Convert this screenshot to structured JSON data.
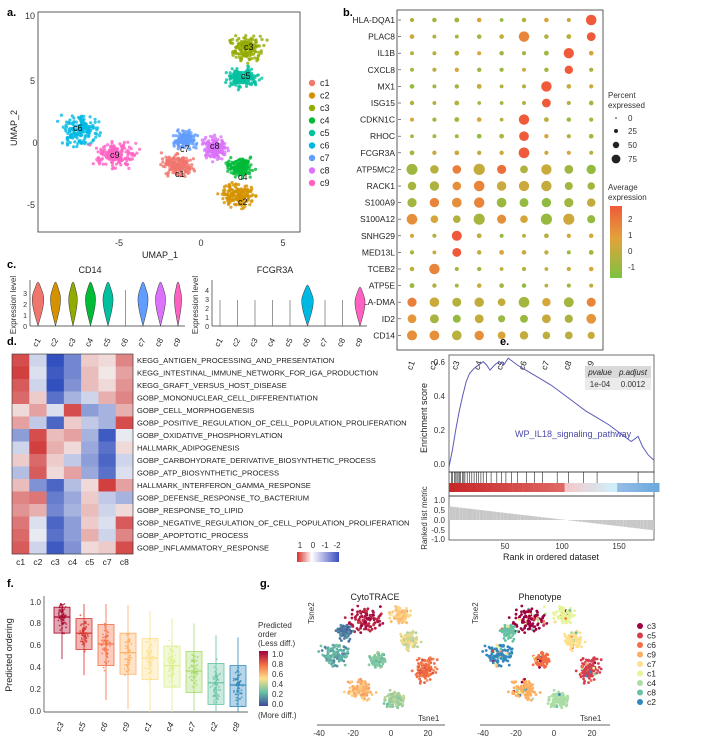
{
  "panel_labels": {
    "a": "a.",
    "b": "b.",
    "c": "c.",
    "d": "d.",
    "e": "e.",
    "f": "f.",
    "g": "g."
  },
  "panel_a": {
    "xlabel": "UMAP_1",
    "ylabel": "UMAP_2",
    "xticks": [
      "-5",
      "0",
      "5"
    ],
    "yticks": [
      "10",
      "5",
      "0",
      "-5"
    ],
    "clusters": [
      {
        "name": "c1",
        "color": "#f0766d"
      },
      {
        "name": "c2",
        "color": "#d49200"
      },
      {
        "name": "c3",
        "color": "#93aa00"
      },
      {
        "name": "c4",
        "color": "#00ba38"
      },
      {
        "name": "c5",
        "color": "#00c19f"
      },
      {
        "name": "c6",
        "color": "#00b9e3"
      },
      {
        "name": "c7",
        "color": "#619cff"
      },
      {
        "name": "c8",
        "color": "#db72fb"
      },
      {
        "name": "c9",
        "color": "#ff61c3"
      }
    ]
  },
  "panel_b": {
    "genes": [
      "HLA-DQA1",
      "PLAC8",
      "IL1B",
      "CXCL8",
      "MX1",
      "ISG15",
      "CDKN1C",
      "RHOC",
      "FCGR3A",
      "ATP5MC2",
      "RACK1",
      "S100A9",
      "S100A12",
      "SNHG29",
      "MED13L",
      "TCEB2",
      "ATP5E",
      "HLA-DMA",
      "ID2",
      "CD14"
    ],
    "clusters": [
      "c1",
      "c2",
      "c3",
      "c4",
      "c5",
      "c6",
      "c7",
      "c8",
      "c9"
    ],
    "legend_pct_title_1": "Percent",
    "legend_pct_title_2": "expressed",
    "pct_labels": [
      "0",
      "25",
      "50",
      "75"
    ],
    "legend_avg_title_1": "Average",
    "legend_avg_title_2": "expression",
    "avg_labels": [
      "2",
      "1",
      "0",
      "-1"
    ]
  },
  "panel_c": {
    "left_title": "CD14",
    "right_title": "FCGR3A",
    "ylabel": "Expression level",
    "left_yticks": [
      "0",
      "1",
      "2",
      "3"
    ],
    "right_yticks": [
      "0",
      "1",
      "2",
      "3",
      "4"
    ],
    "clusters": [
      "c1",
      "c2",
      "c3",
      "c4",
      "c5",
      "c6",
      "c7",
      "c8",
      "c9"
    ]
  },
  "panel_d": {
    "pathways": [
      "KEGG_ANTIGEN_PROCESSING_AND_PRESENTATION",
      "KEGG_INTESTINAL_IMMUNE_NETWORK_FOR_IGA_PRODUCTION",
      "KEGG_GRAFT_VERSUS_HOST_DISEASE",
      "GOBP_MONONUCLEAR_CELL_DIFFERENTIATION",
      "GOBP_CELL_MORPHOGENESIS",
      "GOBP_POSITIVE_REGULATION_OF_CELL_POPULATION_PROLIFERATION",
      "GOBP_OXIDATIVE_PHOSPHORYLATION",
      "HALLMARK_ADIPOGENESIS",
      "GOBP_CARBOHYDRATE_DERIVATIVE_BIOSYNTHETIC_PROCESS",
      "GOBP_ATP_BIOSYNTHETIC_PROCESS",
      "HALLMARK_INTERFERON_GAMMA_RESPONSE",
      "GOBP_DEFENSE_RESPONSE_TO_BACTERIUM",
      "GOBP_RESPONSE_TO_LIPID",
      "GOBP_NEGATIVE_REGULATION_OF_CELL_POPULATION_PROLIFERATION",
      "GOBP_APOPTOTIC_PROCESS",
      "GOBP_INFLAMMATORY_RESPONSE"
    ],
    "columns": [
      "c1",
      "c2",
      "c3",
      "c4",
      "c5",
      "c7",
      "c8"
    ],
    "colorbar_labels": [
      "1",
      "0",
      "-1",
      "-2"
    ]
  },
  "panel_e": {
    "ylabel": "Enrichment score",
    "ylabel2": "Ranked list metric",
    "xlabel": "Rank in ordered dataset",
    "yticks": [
      "0.6",
      "0.4",
      "0.2",
      "0.0"
    ],
    "yticks2": [
      "1.0",
      "0.5",
      "0.0",
      "-0.5",
      "-1.0"
    ],
    "xticks": [
      "50",
      "100",
      "150"
    ],
    "pathway": "WP_IL18_signaling_pathway",
    "table_headers": [
      "pvalue",
      "p.adjust"
    ],
    "table_values": [
      "1e-04",
      "0.0012"
    ]
  },
  "panel_f": {
    "ylabel": "Predicted ordering",
    "yticks": [
      "1.0",
      "0.8",
      "0.6",
      "0.4",
      "0.2",
      "0.0"
    ],
    "order": [
      "c3",
      "c5",
      "c6",
      "c9",
      "c1",
      "c4",
      "c7",
      "c2",
      "c8"
    ],
    "colors": [
      "#a50026",
      "#d73027",
      "#f46d43",
      "#fdae61",
      "#fee08b",
      "#d9ef8b",
      "#a6d96a",
      "#66c2a5",
      "#3288bd"
    ],
    "medians": [
      0.88,
      0.73,
      0.63,
      0.55,
      0.5,
      0.43,
      0.38,
      0.27,
      0.25
    ]
  },
  "panel_g": {
    "left_title": "CytoTRACE",
    "right_title": "Phenotype",
    "xlabel": "Tsne1",
    "ylabel": "Tsne2",
    "xticks": [
      "-40",
      "-20",
      "0",
      "20"
    ],
    "legend_title_1": "Predicted",
    "legend_title_2": "order",
    "legend_title_3": "(Less diff.)",
    "legend_bottom": "(More diff.)",
    "legend_ticks": [
      "1.0",
      "0.8",
      "0.6",
      "0.4",
      "0.2",
      "0.0"
    ],
    "phenotype_legend": [
      {
        "name": "c3",
        "color": "#9e0142"
      },
      {
        "name": "c5",
        "color": "#d53e4f"
      },
      {
        "name": "c6",
        "color": "#f46d43"
      },
      {
        "name": "c9",
        "color": "#fdae61"
      },
      {
        "name": "c7",
        "color": "#fee08b"
      },
      {
        "name": "c1",
        "color": "#e6f598"
      },
      {
        "name": "c4",
        "color": "#abdda4"
      },
      {
        "name": "c8",
        "color": "#66c2a5"
      },
      {
        "name": "c2",
        "color": "#3288bd"
      }
    ]
  }
}
